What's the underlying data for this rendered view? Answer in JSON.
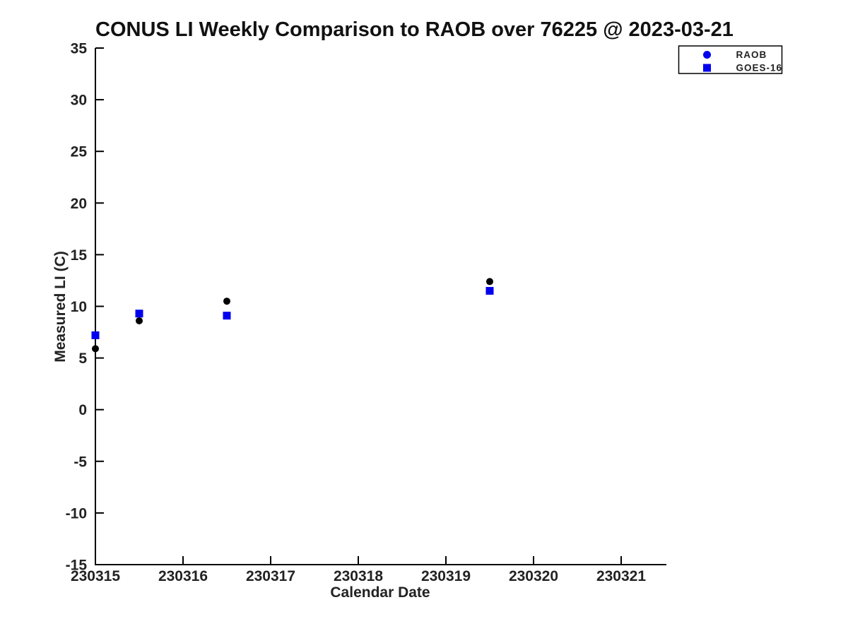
{
  "chart_data": {
    "type": "scatter",
    "title": "CONUS LI Weekly Comparison to RAOB over 76225 @ 2023-03-21",
    "xlabel": "Calendar Date",
    "ylabel": "Measured LI (C)",
    "xlim": [
      230315,
      230321.5
    ],
    "ylim": [
      -15,
      35
    ],
    "x_ticks": [
      230315,
      230316,
      230317,
      230318,
      230319,
      230320,
      230321
    ],
    "y_ticks": [
      -15,
      -10,
      -5,
      0,
      5,
      10,
      15,
      20,
      25,
      30,
      35
    ],
    "grid": false,
    "legend_position": "top-right",
    "axis_color": "#000000",
    "series": [
      {
        "name": "RAOB",
        "marker": "circle",
        "plot_color": "#000000",
        "legend_color": "#0000ee",
        "points": [
          [
            230315.0,
            5.9
          ],
          [
            230315.5,
            8.6
          ],
          [
            230316.5,
            10.5
          ],
          [
            230319.5,
            12.4
          ]
        ]
      },
      {
        "name": "GOES-16",
        "marker": "square",
        "plot_color": "#0000ee",
        "legend_color": "#0000ee",
        "points": [
          [
            230315.0,
            7.2
          ],
          [
            230315.5,
            9.3
          ],
          [
            230316.5,
            9.1
          ],
          [
            230319.5,
            11.5
          ]
        ]
      }
    ]
  }
}
